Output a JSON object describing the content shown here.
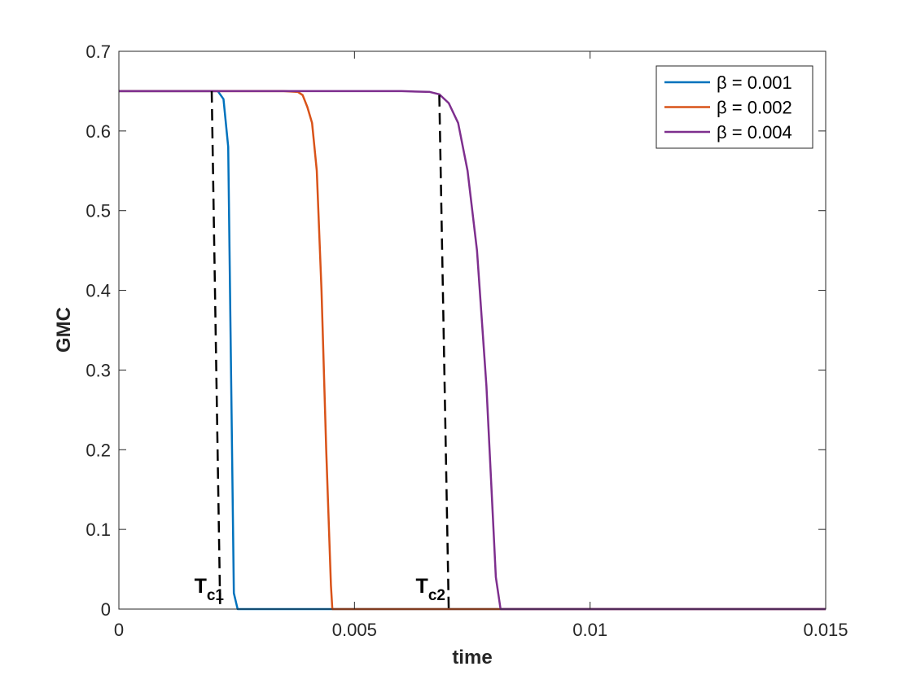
{
  "chart_data": {
    "type": "line",
    "xlabel": "time",
    "ylabel": "GMC",
    "xlim": [
      0,
      0.015
    ],
    "ylim": [
      0,
      0.7
    ],
    "xticks": [
      0,
      0.005,
      0.01,
      0.015
    ],
    "xtick_labels": [
      "0",
      "0.005",
      "0.01",
      "0.015"
    ],
    "yticks": [
      0,
      0.1,
      0.2,
      0.3,
      0.4,
      0.5,
      0.6,
      0.7
    ],
    "ytick_labels": [
      "0",
      "0.1",
      "0.2",
      "0.3",
      "0.4",
      "0.5",
      "0.6",
      "0.7"
    ],
    "grid": false,
    "legend_position": "top-right",
    "series": [
      {
        "name": "β = 0.001",
        "color": "#0072BD",
        "x": [
          0,
          0.0018,
          0.002,
          0.0021,
          0.00222,
          0.00232,
          0.00238,
          0.00244,
          0.00252,
          0.003,
          0.005,
          0.01,
          0.015
        ],
        "y": [
          0.65,
          0.65,
          0.65,
          0.65,
          0.64,
          0.58,
          0.3,
          0.02,
          0,
          0,
          0,
          0,
          0
        ]
      },
      {
        "name": "β = 0.002",
        "color": "#D95319",
        "x": [
          0,
          0.0035,
          0.0038,
          0.0039,
          0.004,
          0.0041,
          0.0042,
          0.0043,
          0.0044,
          0.0045,
          0.00453,
          0.006,
          0.01,
          0.015
        ],
        "y": [
          0.65,
          0.65,
          0.649,
          0.645,
          0.63,
          0.61,
          0.55,
          0.4,
          0.2,
          0.03,
          0,
          0,
          0,
          0
        ]
      },
      {
        "name": "β = 0.004",
        "color": "#7E2F8E",
        "x": [
          0,
          0.006,
          0.0066,
          0.0068,
          0.007,
          0.0072,
          0.0074,
          0.0076,
          0.0078,
          0.0079,
          0.008,
          0.0081,
          0.009,
          0.01,
          0.015
        ],
        "y": [
          0.65,
          0.65,
          0.649,
          0.646,
          0.635,
          0.61,
          0.55,
          0.45,
          0.28,
          0.16,
          0.04,
          0,
          0,
          0,
          0
        ]
      }
    ],
    "annotations": [
      {
        "main": "T",
        "sub": "c1",
        "label_x": 0.0016,
        "label_y": 0.0,
        "line": [
          [
            0.00197,
            0.65
          ],
          [
            0.00215,
            0.0
          ]
        ]
      },
      {
        "main": "T",
        "sub": "c2",
        "label_x": 0.0063,
        "label_y": 0.0,
        "line": [
          [
            0.0068,
            0.645
          ],
          [
            0.007,
            0.0
          ]
        ]
      }
    ]
  }
}
